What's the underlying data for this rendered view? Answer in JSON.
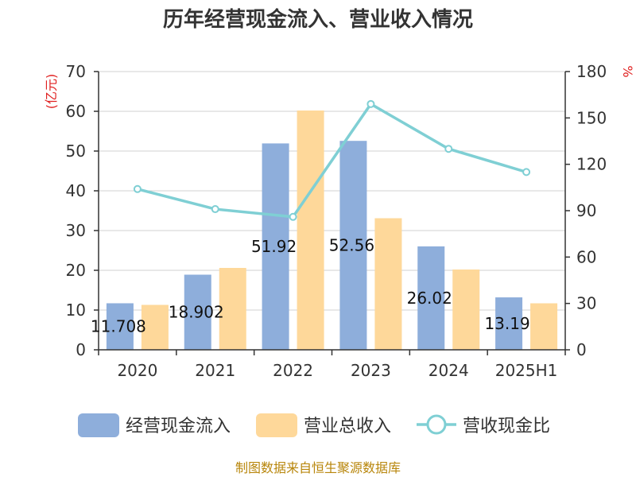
{
  "chart_data": {
    "type": "bar",
    "title": "历年经营现金流入、营业收入情况",
    "categories": [
      "2020",
      "2021",
      "2022",
      "2023",
      "2024",
      "2025H1"
    ],
    "left_axis": {
      "unit": "(亿元)",
      "min": 0,
      "max": 70,
      "ticks": [
        0,
        10,
        20,
        30,
        40,
        50,
        60,
        70
      ]
    },
    "right_axis": {
      "unit": "%",
      "min": 0,
      "max": 180,
      "ticks": [
        0,
        30,
        60,
        90,
        120,
        150,
        180
      ]
    },
    "grid": true,
    "legend_position": "bottom",
    "series": [
      {
        "name": "经营现金流入",
        "kind": "bar",
        "axis": "left",
        "color": "#8eaedb",
        "values": [
          11.708,
          18.902,
          51.92,
          52.56,
          26.02,
          13.19
        ],
        "labels": [
          "11.708",
          "18.902",
          "51.92",
          "52.56",
          "26.02",
          "13.19"
        ]
      },
      {
        "name": "营业总收入",
        "kind": "bar",
        "axis": "left",
        "color": "#fed89a",
        "values": [
          11.3,
          20.6,
          60.2,
          33.1,
          20.2,
          11.7
        ]
      },
      {
        "name": "营收现金比",
        "kind": "line",
        "axis": "right",
        "color": "#7fcfd4",
        "values": [
          104,
          91,
          86,
          159,
          130,
          115
        ]
      }
    ],
    "source": "制图数据来自恒生聚源数据库"
  }
}
